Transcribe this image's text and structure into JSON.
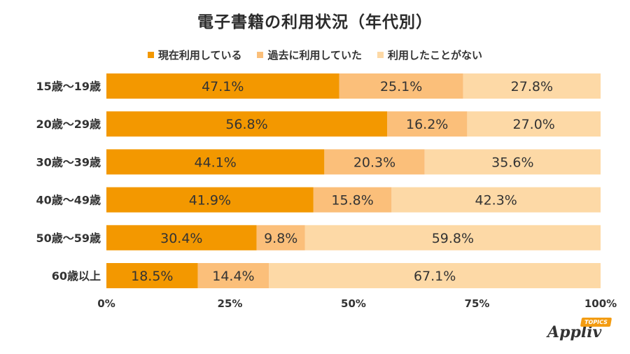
{
  "title": "電子書籍の利用状況（年代別）",
  "legend": [
    {
      "label": "現在利用している",
      "color": "#f39800"
    },
    {
      "label": "過去に利用していた",
      "color": "#fbbf7a"
    },
    {
      "label": "利用したことがない",
      "color": "#fdd9a6"
    }
  ],
  "logo": {
    "word": "Appliv",
    "tag": "TOPICS"
  },
  "chart_data": {
    "type": "bar",
    "orientation": "horizontal",
    "stacked": true,
    "title": "電子書籍の利用状況（年代別）",
    "categories": [
      "15歳〜19歳",
      "20歳〜29歳",
      "30歳〜39歳",
      "40歳〜49歳",
      "50歳〜59歳",
      "60歳以上"
    ],
    "series": [
      {
        "name": "現在利用している",
        "color": "#f39800",
        "values": [
          47.1,
          56.8,
          44.1,
          41.9,
          30.4,
          18.5
        ]
      },
      {
        "name": "過去に利用していた",
        "color": "#fbbf7a",
        "values": [
          25.1,
          16.2,
          20.3,
          15.8,
          9.8,
          14.4
        ]
      },
      {
        "name": "利用したことがない",
        "color": "#fdd9a6",
        "values": [
          27.8,
          27.0,
          35.6,
          42.3,
          59.8,
          67.1
        ]
      }
    ],
    "xlim": [
      0,
      100
    ],
    "xticks": [
      "0%",
      "25%",
      "50%",
      "75%",
      "100%"
    ],
    "value_suffix": "%",
    "legend_position": "top",
    "grid": false
  }
}
